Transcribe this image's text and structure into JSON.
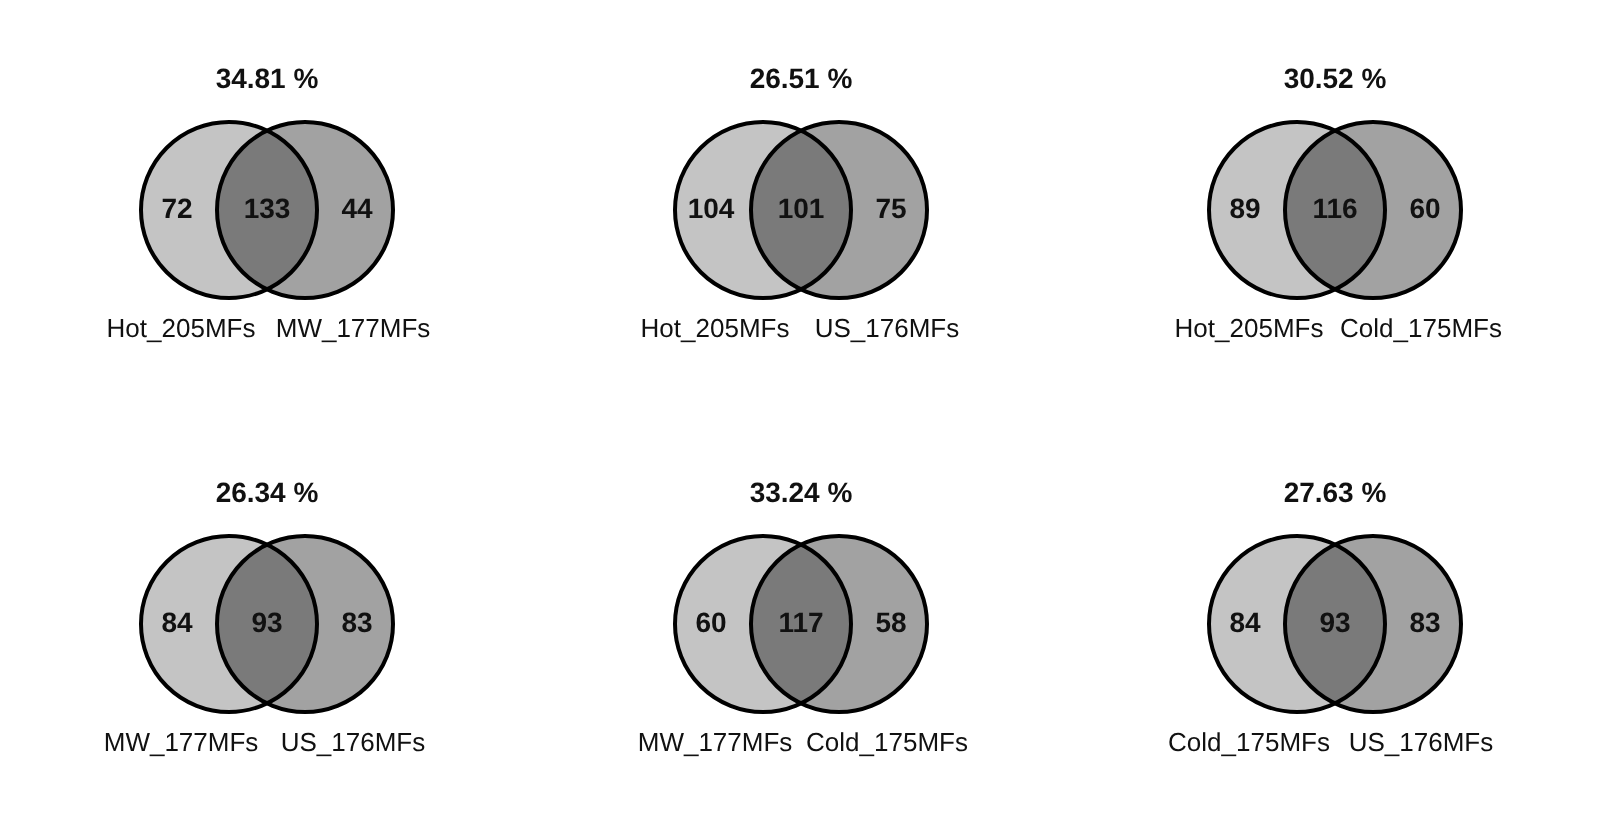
{
  "chart_data": [
    {
      "type": "other",
      "title": "34.81 %",
      "categories": [
        "Hot_205MFs",
        null,
        "MW_177MFs"
      ],
      "values": [
        72,
        133,
        44
      ],
      "colors": [
        "#c4c4c4",
        "#7a7a7a",
        "#a2a2a2"
      ],
      "data_labels": true
    },
    {
      "type": "other",
      "title": "26.51 %",
      "categories": [
        "Hot_205MFs",
        null,
        "US_176MFs"
      ],
      "values": [
        104,
        101,
        75
      ],
      "colors": [
        "#c4c4c4",
        "#7a7a7a",
        "#a2a2a2"
      ],
      "data_labels": true
    },
    {
      "type": "other",
      "title": "30.52 %",
      "categories": [
        "Hot_205MFs",
        null,
        "Cold_175MFs"
      ],
      "values": [
        89,
        116,
        60
      ],
      "colors": [
        "#c4c4c4",
        "#7a7a7a",
        "#a2a2a2"
      ],
      "data_labels": true
    },
    {
      "type": "other",
      "title": "26.34 %",
      "categories": [
        "MW_177MFs",
        null,
        "US_176MFs"
      ],
      "values": [
        84,
        93,
        83
      ],
      "colors": [
        "#c4c4c4",
        "#7a7a7a",
        "#a2a2a2"
      ],
      "data_labels": true
    },
    {
      "type": "other",
      "title": "33.24 %",
      "categories": [
        "MW_177MFs",
        null,
        "Cold_175MFs"
      ],
      "values": [
        60,
        117,
        58
      ],
      "colors": [
        "#c4c4c4",
        "#7a7a7a",
        "#a2a2a2"
      ],
      "data_labels": true
    },
    {
      "type": "other",
      "title": "27.63 %",
      "categories": [
        "Cold_175MFs",
        null,
        "US_176MFs"
      ],
      "values": [
        84,
        93,
        83
      ],
      "colors": [
        "#c4c4c4",
        "#7a7a7a",
        "#a2a2a2"
      ],
      "data_labels": true
    }
  ]
}
